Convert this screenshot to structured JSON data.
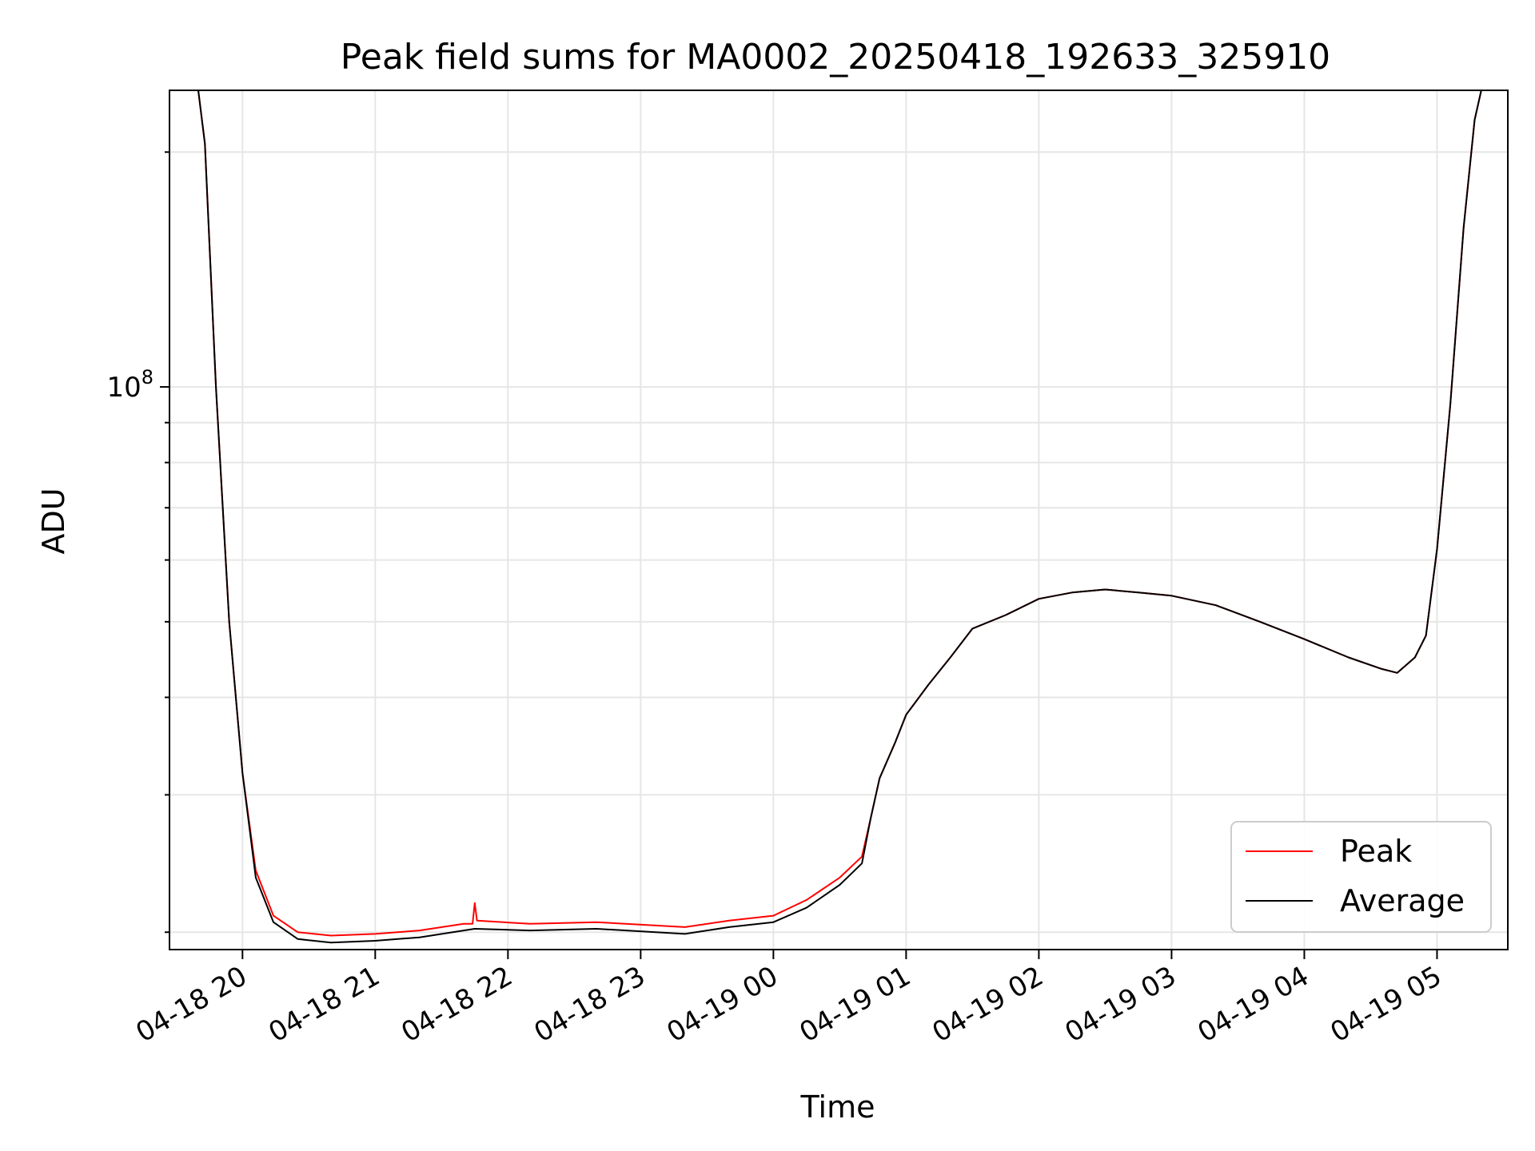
{
  "chart_data": {
    "type": "line",
    "title": "Peak field sums for MA0002_20250418_192633_325910",
    "xlabel": "Time",
    "ylabel": "ADU",
    "y_scale": "log",
    "grid": true,
    "legend_position": "lower-right",
    "x_range": [
      "2025-04-18 19:27",
      "2025-04-19 05:32"
    ],
    "y_range": [
      19000000,
      240000000
    ],
    "x_tick_labels": [
      "04-18 20",
      "04-18 21",
      "04-18 22",
      "04-18 23",
      "04-19 00",
      "04-19 01",
      "04-19 02",
      "04-19 03",
      "04-19 04",
      "04-19 05"
    ],
    "x_ticks": [
      "2025-04-18 20:00",
      "2025-04-18 21:00",
      "2025-04-18 22:00",
      "2025-04-18 23:00",
      "2025-04-19 00:00",
      "2025-04-19 01:00",
      "2025-04-19 02:00",
      "2025-04-19 03:00",
      "2025-04-19 04:00",
      "2025-04-19 05:00"
    ],
    "y_tick_major_label": {
      "base": "10",
      "exponent": "8"
    },
    "y_tick_major_value": 100000000,
    "series": [
      {
        "name": "Peak",
        "color": "#ff0000",
        "points": [
          [
            "2025-04-18 19:27",
            240000000
          ],
          [
            "2025-04-18 19:40",
            240000000
          ],
          [
            "2025-04-18 19:43",
            205000000
          ],
          [
            "2025-04-18 19:48",
            100000000
          ],
          [
            "2025-04-18 19:54",
            50000000
          ],
          [
            "2025-04-18 20:00",
            32000000
          ],
          [
            "2025-04-18 20:06",
            24000000
          ],
          [
            "2025-04-18 20:14",
            21000000
          ],
          [
            "2025-04-18 20:25",
            20000000
          ],
          [
            "2025-04-18 20:40",
            19800000
          ],
          [
            "2025-04-18 21:00",
            19900000
          ],
          [
            "2025-04-18 21:20",
            20100000
          ],
          [
            "2025-04-18 21:40",
            20500000
          ],
          [
            "2025-04-18 21:44",
            20500000
          ],
          [
            "2025-04-18 21:45",
            21800000
          ],
          [
            "2025-04-18 21:46",
            20700000
          ],
          [
            "2025-04-18 22:10",
            20500000
          ],
          [
            "2025-04-18 22:40",
            20600000
          ],
          [
            "2025-04-18 23:20",
            20300000
          ],
          [
            "2025-04-18 23:40",
            20700000
          ],
          [
            "2025-04-19 00:00",
            21000000
          ],
          [
            "2025-04-19 00:15",
            22000000
          ],
          [
            "2025-04-19 00:30",
            23500000
          ],
          [
            "2025-04-19 00:40",
            25000000
          ],
          [
            "2025-04-19 00:44",
            28000000
          ],
          [
            "2025-04-19 00:48",
            31500000
          ],
          [
            "2025-04-19 00:55",
            35000000
          ],
          [
            "2025-04-19 01:00",
            38000000
          ],
          [
            "2025-04-19 01:10",
            41500000
          ],
          [
            "2025-04-19 01:20",
            45000000
          ],
          [
            "2025-04-19 01:30",
            49000000
          ],
          [
            "2025-04-19 01:45",
            51000000
          ],
          [
            "2025-04-19 02:00",
            53500000
          ],
          [
            "2025-04-19 02:15",
            54500000
          ],
          [
            "2025-04-19 02:30",
            55000000
          ],
          [
            "2025-04-19 02:45",
            54500000
          ],
          [
            "2025-04-19 03:00",
            54000000
          ],
          [
            "2025-04-19 03:20",
            52500000
          ],
          [
            "2025-04-19 03:40",
            50000000
          ],
          [
            "2025-04-19 04:00",
            47500000
          ],
          [
            "2025-04-19 04:20",
            45000000
          ],
          [
            "2025-04-19 04:35",
            43500000
          ],
          [
            "2025-04-19 04:42",
            43000000
          ],
          [
            "2025-04-19 04:50",
            45000000
          ],
          [
            "2025-04-19 04:55",
            48000000
          ],
          [
            "2025-04-19 05:00",
            62000000
          ],
          [
            "2025-04-19 05:06",
            95000000
          ],
          [
            "2025-04-19 05:12",
            160000000
          ],
          [
            "2025-04-19 05:17",
            220000000
          ],
          [
            "2025-04-19 05:20",
            240000000
          ],
          [
            "2025-04-19 05:32",
            240000000
          ]
        ]
      },
      {
        "name": "Average",
        "color": "#000000",
        "points": [
          [
            "2025-04-18 19:27",
            240000000
          ],
          [
            "2025-04-18 19:40",
            240000000
          ],
          [
            "2025-04-18 19:43",
            205000000
          ],
          [
            "2025-04-18 19:48",
            100000000
          ],
          [
            "2025-04-18 19:54",
            50000000
          ],
          [
            "2025-04-18 20:00",
            32000000
          ],
          [
            "2025-04-18 20:06",
            23500000
          ],
          [
            "2025-04-18 20:14",
            20600000
          ],
          [
            "2025-04-18 20:25",
            19600000
          ],
          [
            "2025-04-18 20:40",
            19400000
          ],
          [
            "2025-04-18 21:00",
            19500000
          ],
          [
            "2025-04-18 21:20",
            19700000
          ],
          [
            "2025-04-18 21:40",
            20100000
          ],
          [
            "2025-04-18 21:45",
            20200000
          ],
          [
            "2025-04-18 22:10",
            20100000
          ],
          [
            "2025-04-18 22:40",
            20200000
          ],
          [
            "2025-04-18 23:20",
            19900000
          ],
          [
            "2025-04-18 23:40",
            20300000
          ],
          [
            "2025-04-19 00:00",
            20600000
          ],
          [
            "2025-04-19 00:15",
            21500000
          ],
          [
            "2025-04-19 00:30",
            23000000
          ],
          [
            "2025-04-19 00:40",
            24500000
          ],
          [
            "2025-04-19 00:44",
            28000000
          ],
          [
            "2025-04-19 00:48",
            31500000
          ],
          [
            "2025-04-19 00:55",
            35000000
          ],
          [
            "2025-04-19 01:00",
            38000000
          ],
          [
            "2025-04-19 01:10",
            41500000
          ],
          [
            "2025-04-19 01:20",
            45000000
          ],
          [
            "2025-04-19 01:30",
            49000000
          ],
          [
            "2025-04-19 01:45",
            51000000
          ],
          [
            "2025-04-19 02:00",
            53500000
          ],
          [
            "2025-04-19 02:15",
            54500000
          ],
          [
            "2025-04-19 02:30",
            55000000
          ],
          [
            "2025-04-19 02:45",
            54500000
          ],
          [
            "2025-04-19 03:00",
            54000000
          ],
          [
            "2025-04-19 03:20",
            52500000
          ],
          [
            "2025-04-19 03:40",
            50000000
          ],
          [
            "2025-04-19 04:00",
            47500000
          ],
          [
            "2025-04-19 04:20",
            45000000
          ],
          [
            "2025-04-19 04:35",
            43500000
          ],
          [
            "2025-04-19 04:42",
            43000000
          ],
          [
            "2025-04-19 04:50",
            45000000
          ],
          [
            "2025-04-19 04:55",
            48000000
          ],
          [
            "2025-04-19 05:00",
            62000000
          ],
          [
            "2025-04-19 05:06",
            95000000
          ],
          [
            "2025-04-19 05:12",
            160000000
          ],
          [
            "2025-04-19 05:17",
            220000000
          ],
          [
            "2025-04-19 05:20",
            240000000
          ],
          [
            "2025-04-19 05:32",
            240000000
          ]
        ]
      }
    ]
  }
}
